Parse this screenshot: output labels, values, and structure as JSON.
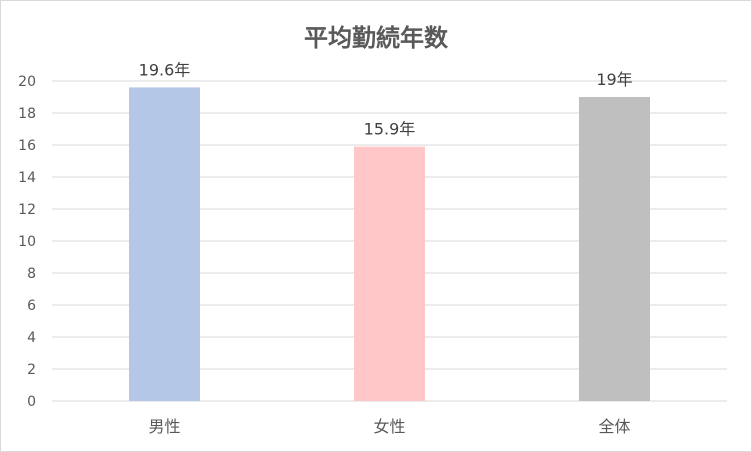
{
  "chart_data": {
    "type": "bar",
    "title": "平均勤続年数",
    "categories": [
      "男性",
      "女性",
      "全体"
    ],
    "values": [
      19.6,
      15.9,
      19
    ],
    "data_labels": [
      "19.6年",
      "15.9年",
      "19年"
    ],
    "colors": [
      "#b4c7e7",
      "#ffc7c7",
      "#bfbfbf"
    ],
    "ylim": [
      0,
      20
    ],
    "yticks": [
      "0",
      "2",
      "4",
      "6",
      "8",
      "10",
      "12",
      "14",
      "16",
      "18",
      "20"
    ],
    "ytick_values": [
      0,
      2,
      4,
      6,
      8,
      10,
      12,
      14,
      16,
      18,
      20
    ],
    "grid": true,
    "legend": "none",
    "xlabel": "",
    "ylabel": ""
  }
}
